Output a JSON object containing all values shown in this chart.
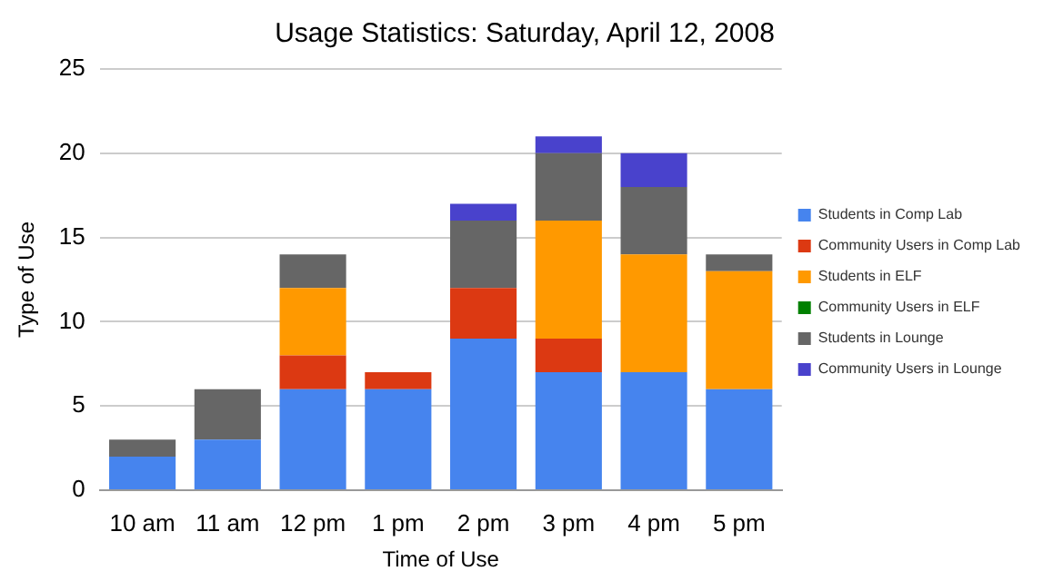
{
  "chart_data": {
    "type": "bar",
    "title": "Usage Statistics: Saturday, April 12, 2008",
    "xlabel": "Time of Use",
    "ylabel": "Type of Use",
    "categories": [
      "10 am",
      "11 am",
      "12 pm",
      "1 pm",
      "2 pm",
      "3 pm",
      "4 pm",
      "5 pm"
    ],
    "stacked": true,
    "ylim": [
      0,
      25
    ],
    "yticks": [
      0,
      5,
      10,
      15,
      20,
      25
    ],
    "grid": "y",
    "legend": "right",
    "series": [
      {
        "name": "Students in Comp Lab",
        "color": "#4684ee",
        "values": [
          2,
          3,
          6,
          6,
          9,
          7,
          7,
          6
        ]
      },
      {
        "name": "Community Users in Comp Lab",
        "color": "#dc3912",
        "values": [
          0,
          0,
          2,
          1,
          3,
          2,
          0,
          0
        ]
      },
      {
        "name": "Students in ELF",
        "color": "#ff9900",
        "values": [
          0,
          0,
          4,
          0,
          0,
          7,
          7,
          7
        ]
      },
      {
        "name": "Community Users in ELF",
        "color": "#008000",
        "values": [
          0,
          0,
          0,
          0,
          0,
          0,
          0,
          0
        ]
      },
      {
        "name": "Students in Lounge",
        "color": "#666666",
        "values": [
          1,
          3,
          2,
          0,
          4,
          4,
          4,
          1
        ]
      },
      {
        "name": "Community Users in Lounge",
        "color": "#4942cc",
        "values": [
          0,
          0,
          0,
          0,
          1,
          1,
          2,
          0
        ]
      }
    ]
  }
}
